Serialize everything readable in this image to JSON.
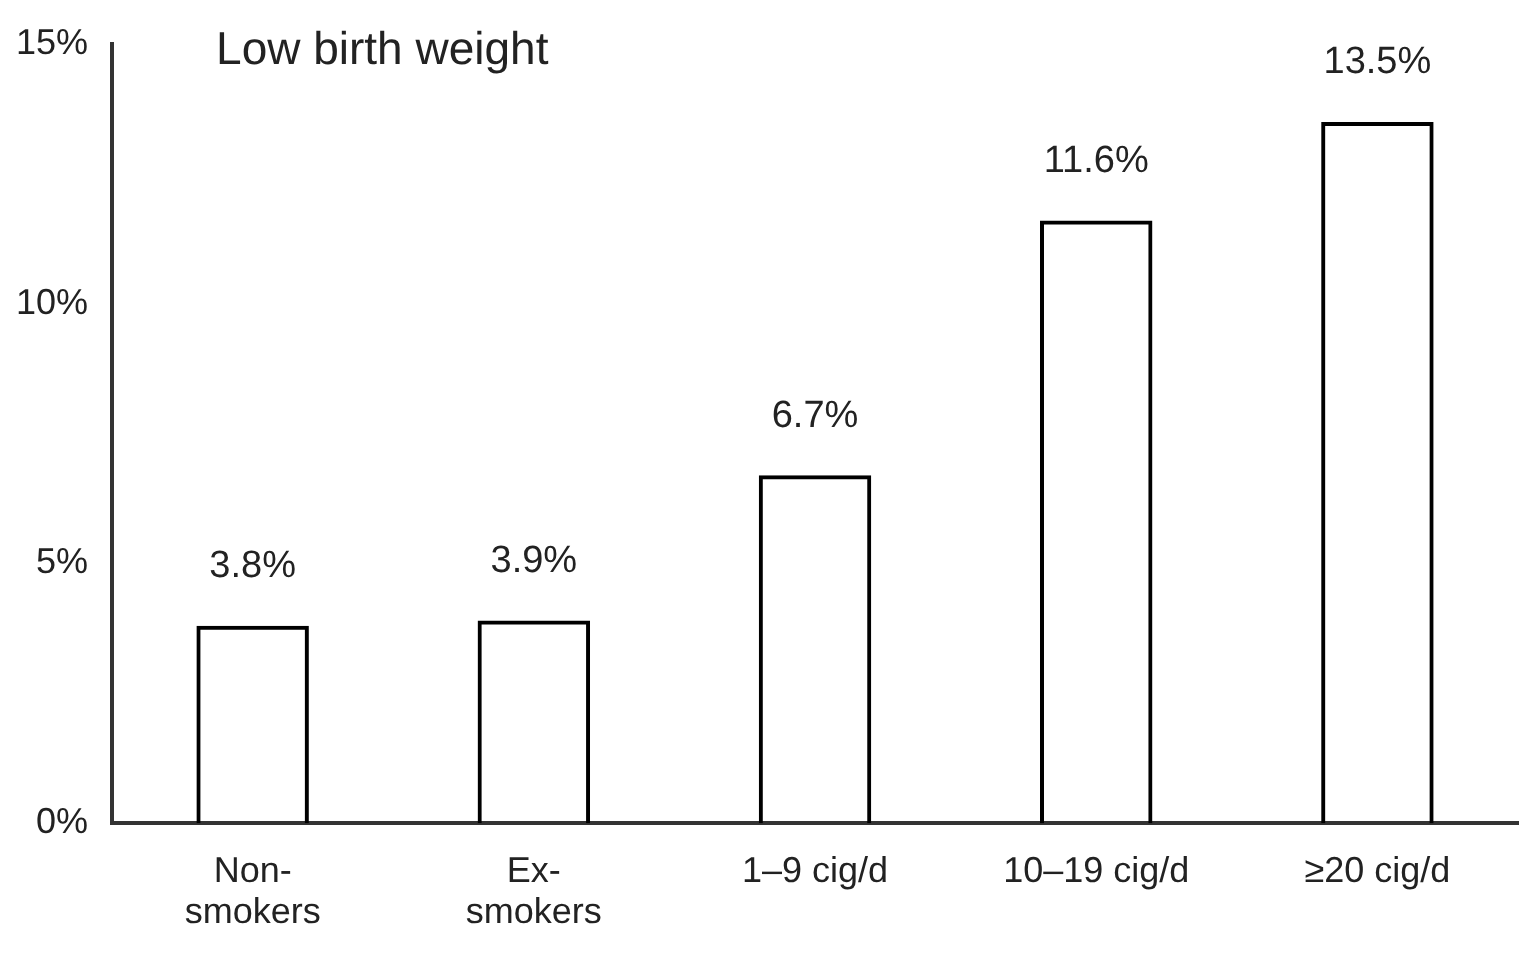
{
  "chart_data": {
    "type": "bar",
    "title": "Low birth weight",
    "categories": [
      "Non-smokers",
      "Ex-smokers",
      "1–9 cig/d",
      "10–19 cig/d",
      "≥20 cig/d"
    ],
    "values": [
      3.8,
      3.9,
      6.7,
      11.6,
      13.5
    ],
    "value_labels": [
      "3.8%",
      "3.9%",
      "6.7%",
      "11.6%",
      "13.5%"
    ],
    "color": "#000000",
    "ylim": [
      0,
      15
    ],
    "yticks": [
      {
        "value": 0,
        "label": "0%"
      },
      {
        "value": 5,
        "label": "5%"
      },
      {
        "value": 10,
        "label": "10%"
      },
      {
        "value": 15,
        "label": "15%"
      }
    ],
    "grid": false,
    "legend": false
  }
}
